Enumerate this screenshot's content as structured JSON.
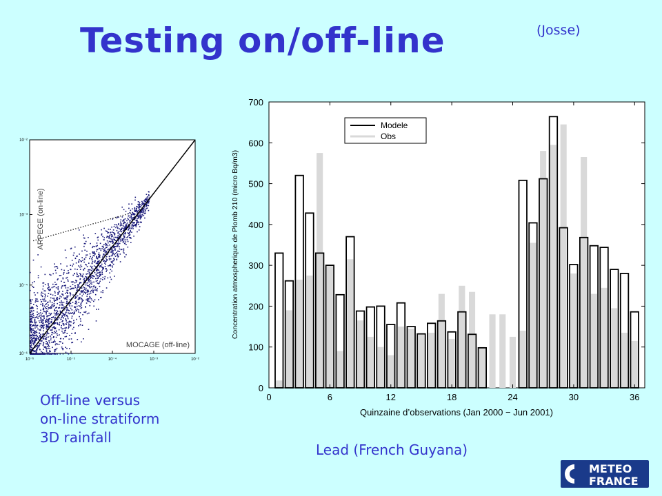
{
  "slide": {
    "title": "Testing on/off-line",
    "author": "(Josse)",
    "caption_left": [
      "Off-line versus",
      "on-line stratiform",
      "3D rainfall"
    ],
    "caption_right": "Lead (French Guyana)",
    "logo": {
      "line1": "METEO",
      "line2": "FRANCE"
    }
  },
  "chart_data": [
    {
      "type": "scatter",
      "xlabel": "MOCAGE (off-line)",
      "ylabel": "ARPEGE (on-line)",
      "x_tick_labels": [
        "10⁻⁶",
        "10⁻⁵",
        "10⁻⁴",
        "10⁻³",
        "10⁻²"
      ],
      "y_tick_labels": [
        "10⁻²",
        "10⁻³",
        "10⁻⁴",
        "10⁻⁶"
      ],
      "log_scale": true,
      "reference_line": "y = x",
      "colors": {
        "points": "#1a1a7a",
        "line": "#000000"
      }
    },
    {
      "type": "bar",
      "title": "",
      "xlabel": "Quinzaine d’observations (Jan 2000 − Jun 2001)",
      "ylabel": "Concentration atmospherique de Plomb 210 (micro Bq/m3)",
      "xlim": [
        0,
        37
      ],
      "ylim": [
        0,
        700
      ],
      "x_ticks": [
        0,
        6,
        12,
        18,
        24,
        30,
        36
      ],
      "y_ticks": [
        0,
        100,
        200,
        300,
        400,
        500,
        600,
        700
      ],
      "legend": {
        "placement": "top-left",
        "entries": [
          "Modele",
          "Obs"
        ]
      },
      "x": [
        1,
        2,
        3,
        4,
        5,
        6,
        7,
        8,
        9,
        10,
        11,
        12,
        13,
        14,
        15,
        16,
        17,
        18,
        19,
        20,
        21,
        22,
        23,
        24,
        25,
        26,
        27,
        28,
        29,
        30,
        31,
        32,
        33,
        34,
        35,
        36
      ],
      "series": [
        {
          "name": "Modele",
          "values": [
            330,
            262,
            520,
            428,
            330,
            300,
            228,
            370,
            188,
            198,
            200,
            155,
            208,
            150,
            132,
            158,
            164,
            137,
            186,
            131,
            98,
            null,
            null,
            null,
            508,
            404,
            512,
            664,
            392,
            302,
            368,
            348,
            344,
            290,
            280,
            186
          ]
        },
        {
          "name": "Obs",
          "values": [
            18,
            190,
            265,
            275,
            575,
            298,
            90,
            315,
            165,
            125,
            100,
            80,
            150,
            145,
            130,
            135,
            230,
            120,
            250,
            235,
            100,
            180,
            180,
            125,
            140,
            355,
            580,
            595,
            645,
            280,
            565,
            230,
            245,
            195,
            135,
            115
          ]
        }
      ]
    }
  ]
}
